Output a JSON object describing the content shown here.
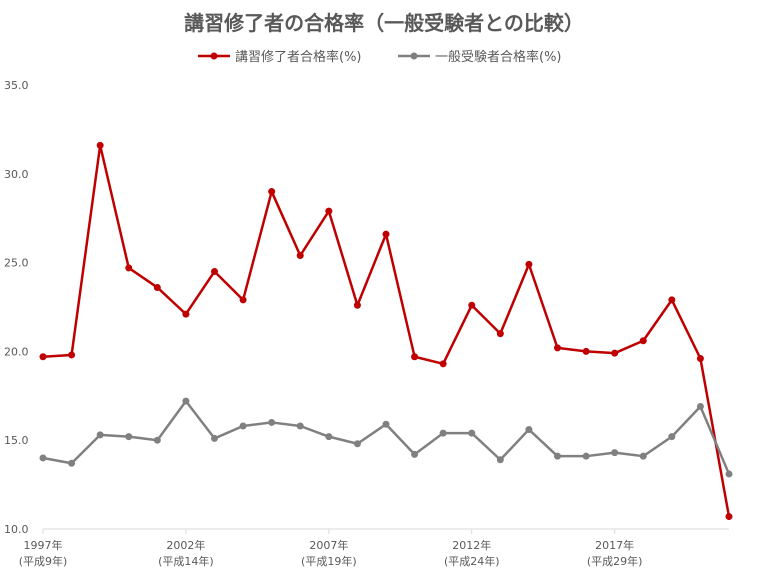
{
  "chart_data": {
    "type": "line",
    "title": "講習修了者の合格率（一般受験者との比較）",
    "legend_position": "top",
    "grid": false,
    "ylim": [
      10.0,
      35.0
    ],
    "y_ticks": [
      "10.0",
      "15.0",
      "20.0",
      "25.0",
      "30.0",
      "35.0"
    ],
    "x": [
      1997,
      1998,
      1999,
      2000,
      2001,
      2002,
      2003,
      2004,
      2005,
      2006,
      2007,
      2008,
      2009,
      2010,
      2011,
      2012,
      2013,
      2014,
      2015,
      2016,
      2017,
      2018,
      2019,
      2020,
      2021
    ],
    "x_tick_labels": [
      {
        "x": 1997,
        "line1": "1997年",
        "line2": "(平成9年)"
      },
      {
        "x": 2002,
        "line1": "2002年",
        "line2": "(平成14年)"
      },
      {
        "x": 2007,
        "line1": "2007年",
        "line2": "(平成19年)"
      },
      {
        "x": 2012,
        "line1": "2012年",
        "line2": "(平成24年)"
      },
      {
        "x": 2017,
        "line1": "2017年",
        "line2": "(平成29年)"
      }
    ],
    "series": [
      {
        "name": "講習修了者合格率(%)",
        "color": "#c00000",
        "values": [
          19.7,
          19.8,
          31.6,
          24.7,
          23.6,
          22.1,
          24.5,
          22.9,
          29.0,
          25.4,
          27.9,
          22.6,
          26.6,
          19.7,
          19.3,
          22.6,
          21.0,
          24.9,
          20.2,
          20.0,
          19.9,
          20.6,
          22.9,
          19.6,
          10.7
        ]
      },
      {
        "name": "一般受験者合格率(%)",
        "color": "#808080",
        "values": [
          14.0,
          13.7,
          15.3,
          15.2,
          15.0,
          17.2,
          15.1,
          15.8,
          16.0,
          15.8,
          15.2,
          14.8,
          15.9,
          14.2,
          15.4,
          15.4,
          13.9,
          15.6,
          14.1,
          14.1,
          14.3,
          14.1,
          15.2,
          16.9,
          13.1
        ]
      }
    ]
  }
}
